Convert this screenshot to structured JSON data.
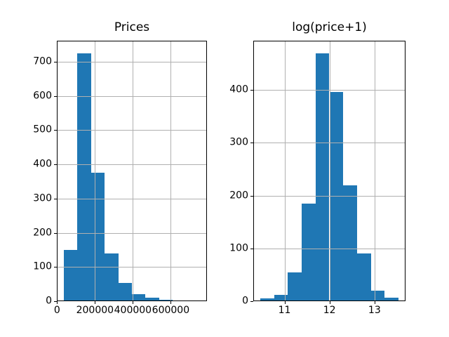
{
  "colors": {
    "bar": "#1f77b4",
    "grid": "#b0b0b0",
    "spine": "#000000",
    "background": "#ffffff",
    "text": "#000000"
  },
  "chart_data": [
    {
      "type": "bar",
      "subtype": "histogram",
      "title": "Prices",
      "xlabel": "",
      "ylabel": "",
      "bin_edges": [
        34900,
        106910,
        178920,
        250930,
        322940,
        394950,
        466960,
        538970,
        610980,
        682990,
        755000
      ],
      "counts": [
        150,
        725,
        376,
        139,
        53,
        20,
        10,
        4,
        2,
        2
      ],
      "xlim": [
        -1105,
        791005
      ],
      "ylim": [
        0,
        761.25
      ],
      "xticks": [
        0,
        200000,
        400000,
        600000
      ],
      "xtick_labels": [
        "0",
        "200000",
        "400000",
        "600000"
      ],
      "yticks": [
        0,
        100,
        200,
        300,
        400,
        500,
        600,
        700
      ],
      "ytick_labels": [
        "0",
        "100",
        "200",
        "300",
        "400",
        "500",
        "600",
        "700"
      ],
      "grid": true,
      "legend": null
    },
    {
      "type": "bar",
      "subtype": "histogram",
      "title": "log(price+1)",
      "xlabel": "",
      "ylabel": "",
      "bin_edges": [
        10.46,
        10.767,
        11.075,
        11.382,
        11.69,
        11.997,
        12.304,
        12.612,
        12.919,
        13.226,
        13.534
      ],
      "counts": [
        5,
        12,
        55,
        185,
        470,
        397,
        220,
        90,
        20,
        6
      ],
      "xlim": [
        10.306,
        13.688
      ],
      "ylim": [
        0,
        493.5
      ],
      "xticks": [
        11,
        12,
        13
      ],
      "xtick_labels": [
        "11",
        "12",
        "13"
      ],
      "yticks": [
        0,
        100,
        200,
        300,
        400
      ],
      "ytick_labels": [
        "0",
        "100",
        "200",
        "300",
        "400"
      ],
      "grid": true,
      "legend": null
    }
  ]
}
